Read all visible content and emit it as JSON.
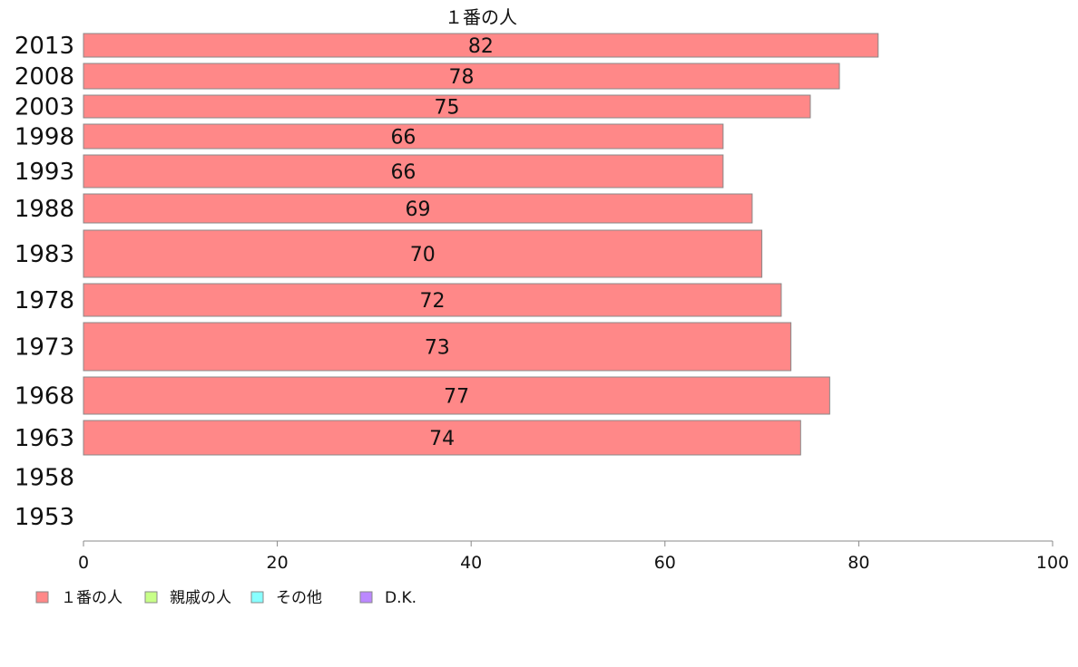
{
  "chart_data": {
    "type": "bar",
    "orientation": "horizontal",
    "title": "",
    "categories": [
      "2013",
      "2008",
      "2003",
      "1998",
      "1993",
      "1988",
      "1983",
      "1978",
      "1973",
      "1968",
      "1963",
      "1958",
      "1953"
    ],
    "series": [
      {
        "name": "１番の人",
        "color": "#ff8888",
        "values": [
          82,
          78,
          75,
          66,
          66,
          69,
          70,
          72,
          73,
          77,
          74,
          null,
          null
        ],
        "labels": [
          "82",
          "78",
          "75",
          "66",
          "66",
          "69",
          "70",
          "72",
          "73",
          "77",
          "74",
          "",
          ""
        ]
      }
    ],
    "xlim": [
      0,
      100
    ],
    "xticks": [
      "0",
      "20",
      "40",
      "60",
      "80",
      "100"
    ],
    "legend": {
      "position": "bottom-left",
      "items": [
        {
          "label": "１番の人",
          "color": "#ff8888"
        },
        {
          "label": "親戚の人",
          "color": "#c8ff88"
        },
        {
          "label": "その他",
          "color": "#88ffff"
        },
        {
          "label": "D.K.",
          "color": "#bb88ff"
        }
      ]
    }
  }
}
